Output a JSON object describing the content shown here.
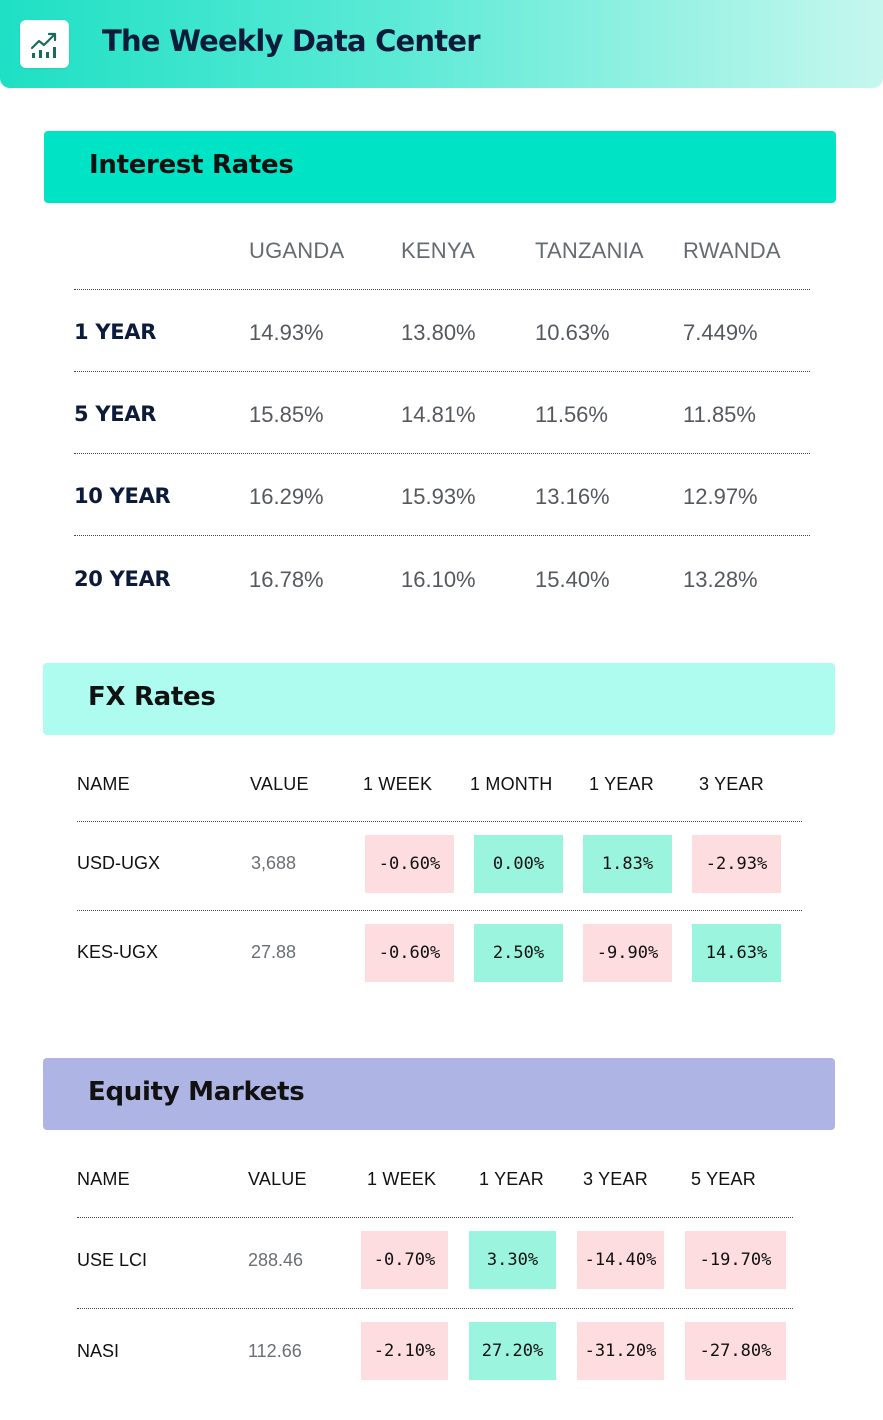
{
  "app": {
    "title": "The Weekly Data Center",
    "logo_icon": "chart-growth-icon"
  },
  "colors": {
    "interest_band": "#00e4c5",
    "fx_band": "#adfcef",
    "equity_band": "#aeb4e4",
    "negative_chip": "#fddde0",
    "positive_chip": "#9af4de"
  },
  "interest_rates": {
    "title": "Interest Rates",
    "columns": [
      "UGANDA",
      "KENYA",
      "TANZANIA",
      "RWANDA"
    ],
    "rows": [
      {
        "label": "1 YEAR",
        "values": [
          "14.93%",
          "13.80%",
          "10.63%",
          "7.449%"
        ]
      },
      {
        "label": "5 YEAR",
        "values": [
          "15.85%",
          "14.81%",
          "11.56%",
          "11.85%"
        ]
      },
      {
        "label": "10 YEAR",
        "values": [
          "16.29%",
          "15.93%",
          "13.16%",
          "12.97%"
        ]
      },
      {
        "label": "20 YEAR",
        "values": [
          "16.78%",
          "16.10%",
          "15.40%",
          "13.28%"
        ]
      }
    ]
  },
  "fx_rates": {
    "title": "FX Rates",
    "headers": [
      "NAME",
      "VALUE",
      "1 WEEK",
      "1 MONTH",
      "1 YEAR",
      "3 YEAR"
    ],
    "rows": [
      {
        "name": "USD-UGX",
        "value": "3,688",
        "changes": [
          {
            "text": "-0.60%",
            "sign": "neg"
          },
          {
            "text": "0.00%",
            "sign": "pos"
          },
          {
            "text": "1.83%",
            "sign": "pos"
          },
          {
            "text": "-2.93%",
            "sign": "neg"
          }
        ]
      },
      {
        "name": "KES-UGX",
        "value": "27.88",
        "changes": [
          {
            "text": "-0.60%",
            "sign": "neg"
          },
          {
            "text": "2.50%",
            "sign": "pos"
          },
          {
            "text": "-9.90%",
            "sign": "neg"
          },
          {
            "text": "14.63%",
            "sign": "pos"
          }
        ]
      }
    ]
  },
  "equity_markets": {
    "title": "Equity Markets",
    "headers": [
      "NAME",
      "VALUE",
      "1 WEEK",
      "1 YEAR",
      "3 YEAR",
      "5 YEAR"
    ],
    "rows": [
      {
        "name": "USE LCI",
        "value": "288.46",
        "changes": [
          {
            "text": "-0.70%",
            "sign": "neg"
          },
          {
            "text": "3.30%",
            "sign": "pos"
          },
          {
            "text": "-14.40%",
            "sign": "neg"
          },
          {
            "text": "-19.70%",
            "sign": "neg"
          }
        ]
      },
      {
        "name": "NASI",
        "value": "112.66",
        "changes": [
          {
            "text": "-2.10%",
            "sign": "neg"
          },
          {
            "text": "27.20%",
            "sign": "pos"
          },
          {
            "text": "-31.20%",
            "sign": "neg"
          },
          {
            "text": "-27.80%",
            "sign": "neg"
          }
        ]
      }
    ]
  }
}
